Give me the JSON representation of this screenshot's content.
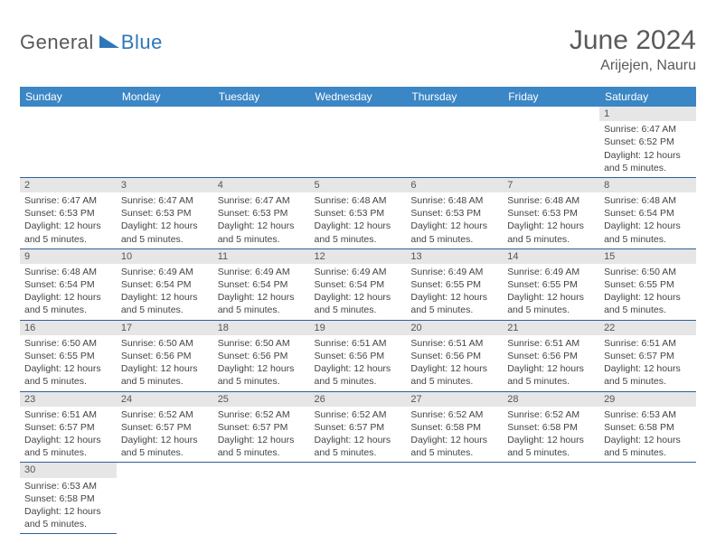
{
  "logo": {
    "text1": "General",
    "text2": "Blue"
  },
  "title": "June 2024",
  "location": "Arijejen, Nauru",
  "colors": {
    "header_bg": "#3b86c5",
    "border": "#2f5f9a",
    "daynum_bg": "#e6e6e6",
    "title_color": "#5a5a5a",
    "logo_blue": "#2f76b8",
    "logo_gray": "#585858"
  },
  "columns": [
    "Sunday",
    "Monday",
    "Tuesday",
    "Wednesday",
    "Thursday",
    "Friday",
    "Saturday"
  ],
  "weeks": [
    [
      null,
      null,
      null,
      null,
      null,
      null,
      {
        "n": "1",
        "sr": "6:47 AM",
        "ss": "6:52 PM",
        "dl": "12 hours and 5 minutes."
      }
    ],
    [
      {
        "n": "2",
        "sr": "6:47 AM",
        "ss": "6:53 PM",
        "dl": "12 hours and 5 minutes."
      },
      {
        "n": "3",
        "sr": "6:47 AM",
        "ss": "6:53 PM",
        "dl": "12 hours and 5 minutes."
      },
      {
        "n": "4",
        "sr": "6:47 AM",
        "ss": "6:53 PM",
        "dl": "12 hours and 5 minutes."
      },
      {
        "n": "5",
        "sr": "6:48 AM",
        "ss": "6:53 PM",
        "dl": "12 hours and 5 minutes."
      },
      {
        "n": "6",
        "sr": "6:48 AM",
        "ss": "6:53 PM",
        "dl": "12 hours and 5 minutes."
      },
      {
        "n": "7",
        "sr": "6:48 AM",
        "ss": "6:53 PM",
        "dl": "12 hours and 5 minutes."
      },
      {
        "n": "8",
        "sr": "6:48 AM",
        "ss": "6:54 PM",
        "dl": "12 hours and 5 minutes."
      }
    ],
    [
      {
        "n": "9",
        "sr": "6:48 AM",
        "ss": "6:54 PM",
        "dl": "12 hours and 5 minutes."
      },
      {
        "n": "10",
        "sr": "6:49 AM",
        "ss": "6:54 PM",
        "dl": "12 hours and 5 minutes."
      },
      {
        "n": "11",
        "sr": "6:49 AM",
        "ss": "6:54 PM",
        "dl": "12 hours and 5 minutes."
      },
      {
        "n": "12",
        "sr": "6:49 AM",
        "ss": "6:54 PM",
        "dl": "12 hours and 5 minutes."
      },
      {
        "n": "13",
        "sr": "6:49 AM",
        "ss": "6:55 PM",
        "dl": "12 hours and 5 minutes."
      },
      {
        "n": "14",
        "sr": "6:49 AM",
        "ss": "6:55 PM",
        "dl": "12 hours and 5 minutes."
      },
      {
        "n": "15",
        "sr": "6:50 AM",
        "ss": "6:55 PM",
        "dl": "12 hours and 5 minutes."
      }
    ],
    [
      {
        "n": "16",
        "sr": "6:50 AM",
        "ss": "6:55 PM",
        "dl": "12 hours and 5 minutes."
      },
      {
        "n": "17",
        "sr": "6:50 AM",
        "ss": "6:56 PM",
        "dl": "12 hours and 5 minutes."
      },
      {
        "n": "18",
        "sr": "6:50 AM",
        "ss": "6:56 PM",
        "dl": "12 hours and 5 minutes."
      },
      {
        "n": "19",
        "sr": "6:51 AM",
        "ss": "6:56 PM",
        "dl": "12 hours and 5 minutes."
      },
      {
        "n": "20",
        "sr": "6:51 AM",
        "ss": "6:56 PM",
        "dl": "12 hours and 5 minutes."
      },
      {
        "n": "21",
        "sr": "6:51 AM",
        "ss": "6:56 PM",
        "dl": "12 hours and 5 minutes."
      },
      {
        "n": "22",
        "sr": "6:51 AM",
        "ss": "6:57 PM",
        "dl": "12 hours and 5 minutes."
      }
    ],
    [
      {
        "n": "23",
        "sr": "6:51 AM",
        "ss": "6:57 PM",
        "dl": "12 hours and 5 minutes."
      },
      {
        "n": "24",
        "sr": "6:52 AM",
        "ss": "6:57 PM",
        "dl": "12 hours and 5 minutes."
      },
      {
        "n": "25",
        "sr": "6:52 AM",
        "ss": "6:57 PM",
        "dl": "12 hours and 5 minutes."
      },
      {
        "n": "26",
        "sr": "6:52 AM",
        "ss": "6:57 PM",
        "dl": "12 hours and 5 minutes."
      },
      {
        "n": "27",
        "sr": "6:52 AM",
        "ss": "6:58 PM",
        "dl": "12 hours and 5 minutes."
      },
      {
        "n": "28",
        "sr": "6:52 AM",
        "ss": "6:58 PM",
        "dl": "12 hours and 5 minutes."
      },
      {
        "n": "29",
        "sr": "6:53 AM",
        "ss": "6:58 PM",
        "dl": "12 hours and 5 minutes."
      }
    ],
    [
      {
        "n": "30",
        "sr": "6:53 AM",
        "ss": "6:58 PM",
        "dl": "12 hours and 5 minutes."
      },
      null,
      null,
      null,
      null,
      null,
      null
    ]
  ],
  "labels": {
    "sunrise": "Sunrise:",
    "sunset": "Sunset:",
    "daylight": "Daylight:"
  }
}
